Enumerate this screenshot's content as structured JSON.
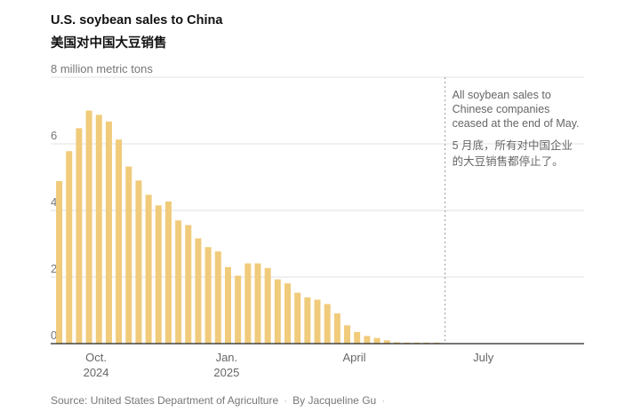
{
  "title": "U.S. soybean sales to China",
  "subtitle": "美国对中国大豆销售",
  "footer": {
    "source": "Source: United States Department of Agriculture",
    "byline": "By Jacqueline Gu"
  },
  "chart_data": {
    "type": "bar",
    "title": "U.S. soybean sales to China",
    "ylabel": "8 million metric tons",
    "ylim": [
      0,
      8
    ],
    "yticks": [
      0,
      2,
      4,
      6,
      8
    ],
    "ytick_labels": [
      "0",
      "2",
      "4",
      "6",
      "8 million metric tons"
    ],
    "grid": true,
    "bar_color": "#f0cb7b",
    "start_date": "2024-09-05",
    "interval": "weekly",
    "values": [
      4.88,
      5.78,
      6.47,
      7.0,
      6.87,
      6.67,
      6.13,
      5.32,
      4.9,
      4.47,
      4.15,
      4.27,
      3.7,
      3.56,
      3.16,
      2.9,
      2.77,
      2.3,
      2.04,
      2.41,
      2.41,
      2.27,
      1.93,
      1.81,
      1.53,
      1.39,
      1.32,
      1.19,
      0.91,
      0.55,
      0.35,
      0.23,
      0.17,
      0.1,
      0.04,
      0.03,
      0.03,
      0.03,
      0.03
    ],
    "xticks": [
      {
        "date": "2024-10-01",
        "label": "Oct.",
        "sub": "2024"
      },
      {
        "date": "2025-01-01",
        "label": "Jan.",
        "sub": "2025"
      },
      {
        "date": "2025-04-01",
        "label": "April",
        "sub": ""
      },
      {
        "date": "2025-07-01",
        "label": "July",
        "sub": ""
      }
    ],
    "xlim": [
      "2024-08-30",
      "2025-09-10"
    ],
    "annotation": {
      "date": "2025-06-04",
      "text_en": [
        "All soybean sales to",
        "Chinese companies",
        "ceased at the end of May."
      ],
      "text_zh": [
        "5 月底，所有对中国企业",
        "的大豆销售都停止了。"
      ]
    }
  }
}
